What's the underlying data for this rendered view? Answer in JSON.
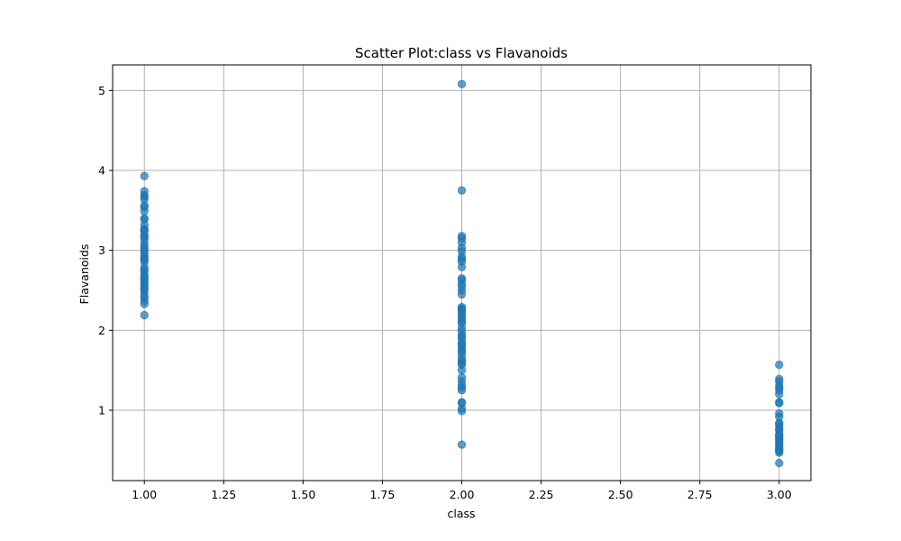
{
  "chart_data": {
    "type": "scatter",
    "title": "Scatter Plot:class vs Flavanoids",
    "xlabel": "class",
    "ylabel": "Flavanoids",
    "xlim": [
      0.9,
      3.1
    ],
    "ylim": [
      0.12,
      5.32
    ],
    "xticks": [
      1.0,
      1.25,
      1.5,
      1.75,
      2.0,
      2.25,
      2.5,
      2.75,
      3.0
    ],
    "xtick_labels": [
      "1.00",
      "1.25",
      "1.50",
      "1.75",
      "2.00",
      "2.25",
      "2.50",
      "2.75",
      "3.00"
    ],
    "yticks": [
      1,
      2,
      3,
      4,
      5
    ],
    "ytick_labels": [
      "1",
      "2",
      "3",
      "4",
      "5"
    ],
    "grid": true,
    "point_color": "#1f77b4",
    "point_opacity": 0.7,
    "series": [
      {
        "x": 1,
        "values": [
          3.93,
          3.74,
          3.69,
          3.67,
          3.64,
          3.56,
          3.54,
          3.49,
          3.4,
          3.39,
          3.32,
          3.27,
          3.25,
          3.24,
          3.19,
          3.17,
          3.15,
          3.1,
          3.06,
          3.03,
          3.0,
          2.98,
          2.94,
          2.91,
          2.9,
          2.88,
          2.86,
          2.79,
          2.76,
          2.74,
          2.69,
          2.68,
          2.65,
          2.63,
          2.61,
          2.58,
          2.55,
          2.52,
          2.51,
          2.48,
          2.43,
          2.41,
          2.37,
          2.33,
          2.19
        ]
      },
      {
        "x": 2,
        "values": [
          5.08,
          3.75,
          3.18,
          3.15,
          3.1,
          3.03,
          2.99,
          2.92,
          2.89,
          2.86,
          2.79,
          2.65,
          2.63,
          2.58,
          2.55,
          2.5,
          2.45,
          2.29,
          2.27,
          2.26,
          2.24,
          2.21,
          2.17,
          2.14,
          2.11,
          2.09,
          2.03,
          1.99,
          1.94,
          1.92,
          1.89,
          1.84,
          1.82,
          1.79,
          1.75,
          1.73,
          1.69,
          1.64,
          1.61,
          1.59,
          1.57,
          1.5,
          1.41,
          1.36,
          1.31,
          1.28,
          1.25,
          1.1,
          1.09,
          1.02,
          0.99,
          0.57
        ]
      },
      {
        "x": 3,
        "values": [
          1.57,
          1.39,
          1.36,
          1.31,
          1.28,
          1.25,
          1.2,
          1.1,
          1.09,
          0.96,
          0.92,
          0.84,
          0.83,
          0.8,
          0.76,
          0.75,
          0.7,
          0.69,
          0.68,
          0.66,
          0.65,
          0.63,
          0.61,
          0.6,
          0.58,
          0.56,
          0.55,
          0.52,
          0.51,
          0.5,
          0.49,
          0.47,
          0.34
        ]
      }
    ]
  }
}
